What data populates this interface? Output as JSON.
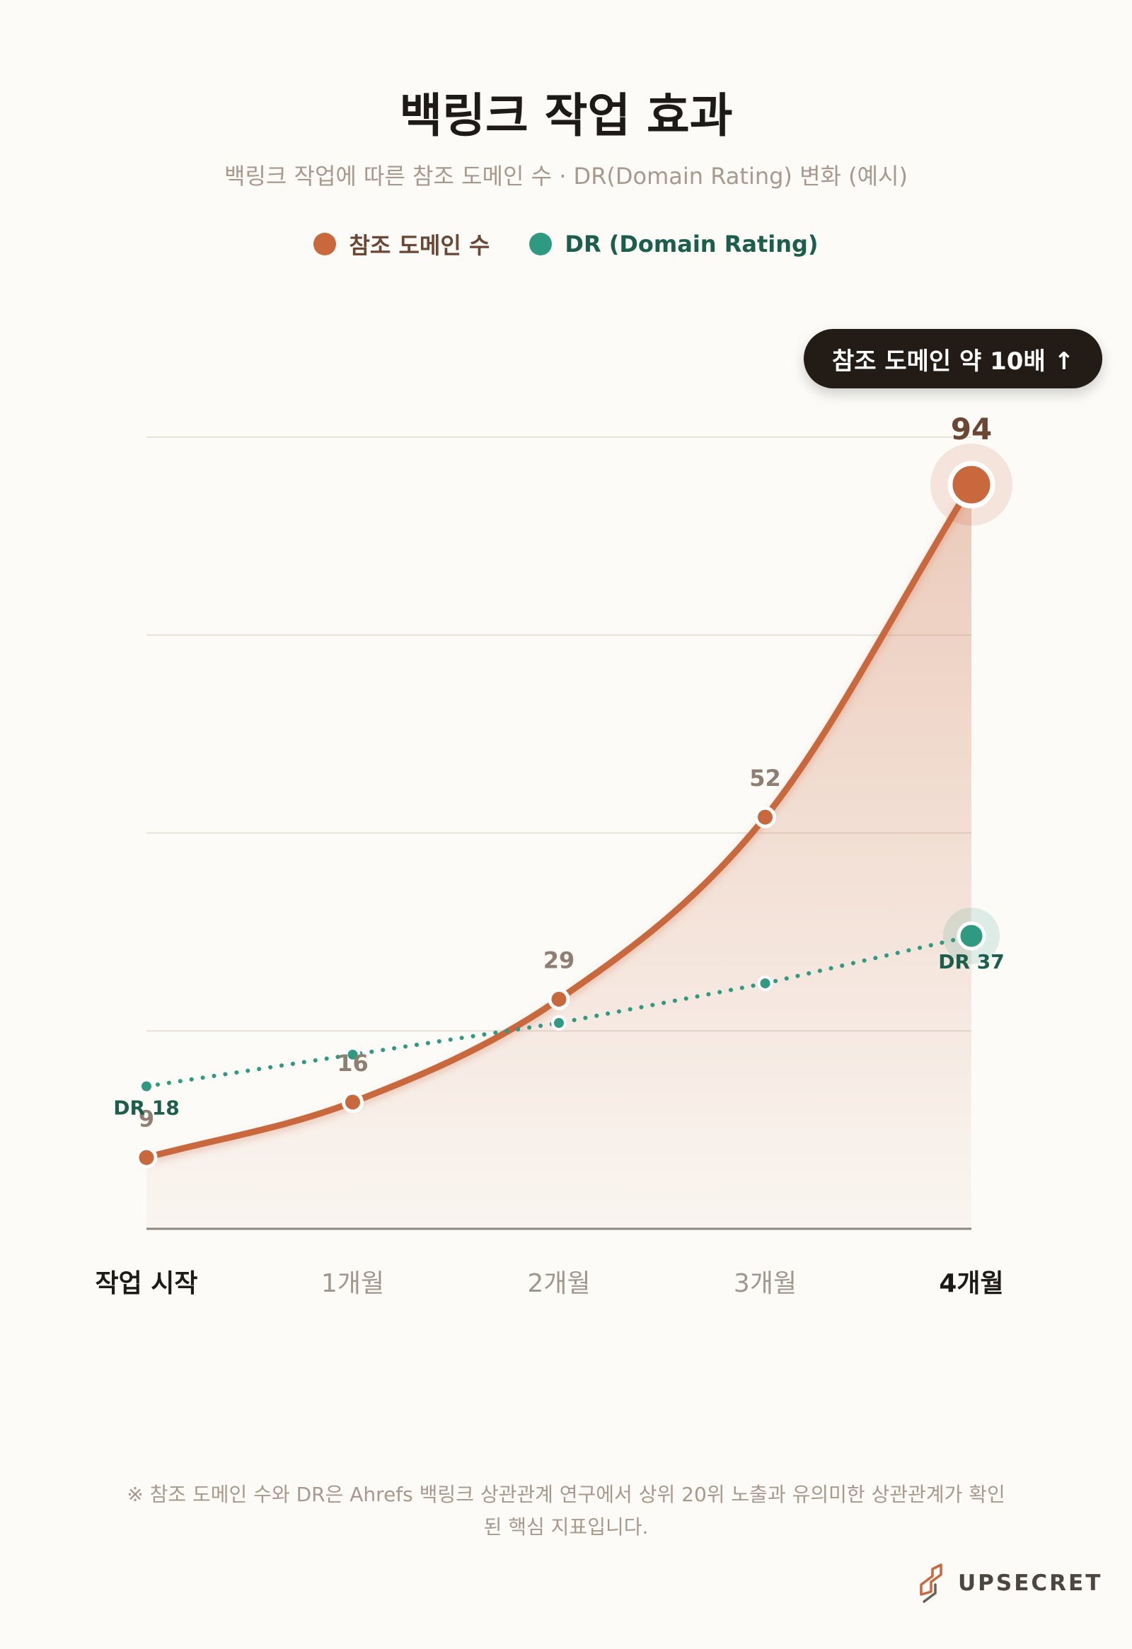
{
  "colors": {
    "domains": "#c9683d",
    "dr": "#2f9a82",
    "domains_label": "#6b4632",
    "dr_label": "#1a5e4b"
  },
  "callout": "참조 도메인 약 10배 ↑",
  "footnote": {
    "line1": "※ 참조 도메인 수와 DR은 Ahrefs 백링크 상관관계 연구에서 상위 20위 노출과 유의미한 상관관계가 확인",
    "line2": "된 핵심 지표입니다."
  },
  "brand": {
    "name": "UPSECRET",
    "icon": "upsecret-logo-icon"
  },
  "chart_data": {
    "type": "line",
    "title": "백링크 작업 효과",
    "subtitle": "백링크 작업에 따른 참조 도메인 수 · DR(Domain Rating) 변화 (예시)",
    "categories": [
      "작업 시작",
      "1개월",
      "2개월",
      "3개월",
      "4개월"
    ],
    "highlighted_categories": [
      "작업 시작",
      "4개월"
    ],
    "series": [
      {
        "name": "참조 도메인 수",
        "values": [
          9,
          16,
          29,
          52,
          94
        ],
        "value_labels": [
          "9",
          "16",
          "29",
          "52",
          "94"
        ],
        "style": "solid-area"
      },
      {
        "name": "DR (Domain Rating)",
        "values": [
          18,
          22,
          26,
          31,
          37
        ],
        "value_labels": [
          "DR 18",
          "",
          "",
          "",
          "DR 37"
        ],
        "style": "dotted"
      }
    ],
    "ylim": [
      0,
      100
    ],
    "grid": true,
    "legend": "top-center"
  }
}
